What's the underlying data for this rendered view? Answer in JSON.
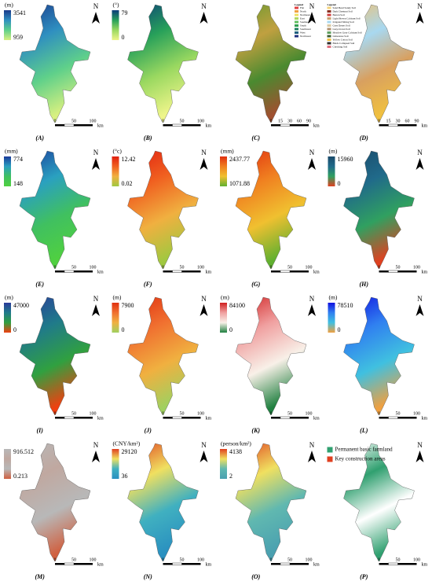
{
  "north": "N",
  "scale_bar": [
    "0",
    "50",
    "100",
    "km"
  ],
  "panels": [
    {
      "label": "(A)",
      "unit": "(m)",
      "max": "3541",
      "min": "959",
      "colors": [
        "#1a3a8a",
        "#2f8fc0",
        "#5fd08a",
        "#d8f080"
      ]
    },
    {
      "label": "(B)",
      "unit": "(°)",
      "max": "79",
      "min": "0",
      "colors": [
        "#0b3d7a",
        "#27a05a",
        "#9ad860",
        "#eef58a"
      ]
    },
    {
      "label": "(C)",
      "legend_title": "Legend",
      "scale_bar": [
        "0",
        "15",
        "30",
        "60",
        "90",
        "km"
      ],
      "items": [
        {
          "name": "Flat",
          "color": "#e04040"
        },
        {
          "name": "North",
          "color": "#f0a040"
        },
        {
          "name": "Northeast",
          "color": "#f0e060"
        },
        {
          "name": "East",
          "color": "#b0d860"
        },
        {
          "name": "Southeast",
          "color": "#60c060"
        },
        {
          "name": "South",
          "color": "#30a050"
        },
        {
          "name": "Southwest",
          "color": "#208060"
        },
        {
          "name": "West",
          "color": "#206080"
        },
        {
          "name": "Northwest",
          "color": "#203080"
        }
      ],
      "colors": [
        "#6a9a30",
        "#c0a040",
        "#4a8a30",
        "#a05030"
      ]
    },
    {
      "label": "(D)",
      "legend_title": "Legend",
      "scale_bar": [
        "0",
        "15",
        "30",
        "60",
        "90",
        "km"
      ],
      "items": [
        {
          "name": "Sand Bead Sandy Soil",
          "color": "#f4d27a"
        },
        {
          "name": "Dark Chestnut Soil",
          "color": "#8a3020"
        },
        {
          "name": "Barren Soil",
          "color": "#d04040"
        },
        {
          "name": "Light Brown Calcium Soil",
          "color": "#c8a070"
        },
        {
          "name": "Irrigated Silting Soil",
          "color": "#a8d8f0"
        },
        {
          "name": "Grey Desert Soil",
          "color": "#d8c8a0"
        },
        {
          "name": "Grey-brown Soil",
          "color": "#b09070"
        },
        {
          "name": "Meadow Grey Calcium Soil",
          "color": "#60a060"
        },
        {
          "name": "Limestone Soil",
          "color": "#406030"
        },
        {
          "name": "Yellow Cotton Soil",
          "color": "#f0c040"
        },
        {
          "name": "Black Collapsed Soil",
          "color": "#303030"
        },
        {
          "name": "Checking Soil",
          "color": "#e07080"
        }
      ],
      "colors": [
        "#f0c070",
        "#a8d8f0",
        "#d8a060",
        "#f0c040"
      ]
    },
    {
      "label": "(E)",
      "unit": "(mm)",
      "max": "774",
      "min": "148",
      "colors": [
        "#1a3a9a",
        "#2aa0c0",
        "#40c060",
        "#50d040"
      ]
    },
    {
      "label": "(F)",
      "unit": "(°c)",
      "max": "12.42",
      "min": "0.02",
      "colors": [
        "#e02010",
        "#f06020",
        "#f0b040",
        "#a0c840"
      ]
    },
    {
      "label": "(G)",
      "unit": "(mm)",
      "max": "2437.77",
      "min": "1071.88",
      "colors": [
        "#e03010",
        "#f08020",
        "#f0c030",
        "#60b030"
      ]
    },
    {
      "label": "(H)",
      "unit": "(m)",
      "max": "15960",
      "min": "0",
      "colors": [
        "#1a4a6a",
        "#206a8a",
        "#30a060",
        "#e04020"
      ]
    },
    {
      "label": "(I)",
      "unit": "(m)",
      "max": "47000",
      "min": "0",
      "colors": [
        "#2a3a9a",
        "#207a8a",
        "#30a040",
        "#f04010"
      ]
    },
    {
      "label": "(J)",
      "unit": "(m)",
      "max": "7900",
      "min": "0",
      "colors": [
        "#e03010",
        "#f07030",
        "#f0b040",
        "#a0d060"
      ]
    },
    {
      "label": "(K)",
      "unit": "(m)",
      "max": "84100",
      "min": "0",
      "colors": [
        "#d02020",
        "#f0a0a0",
        "#f8f0e8",
        "#208040"
      ]
    },
    {
      "label": "(L)",
      "unit": "(m)",
      "max": "78510",
      "min": "0",
      "colors": [
        "#1010e0",
        "#3080f0",
        "#40c0e0",
        "#f0a040"
      ]
    },
    {
      "label": "(M)",
      "max": "916.512",
      "min": "0.213",
      "colors": [
        "#b8b8b8",
        "#c0a8a0",
        "#b8b8b8",
        "#d06040"
      ]
    },
    {
      "label": "(N)",
      "unit": "(CNY/km²)",
      "max": "29120",
      "min": "36",
      "colors": [
        "#e04020",
        "#f0e060",
        "#40b0c0",
        "#2a90c0"
      ]
    },
    {
      "label": "(O)",
      "unit": "(person/km²)",
      "max": "4138",
      "min": "2",
      "colors": [
        "#e04020",
        "#f0e060",
        "#60b8b0",
        "#4aa0b0"
      ]
    },
    {
      "label": "(P)",
      "items": [
        {
          "name": "Permanent basic farmland",
          "color": "#30a070"
        },
        {
          "name": "Key construction areas",
          "color": "#e04020"
        }
      ],
      "colors": [
        "#ffffff",
        "#30a070",
        "#ffffff",
        "#30a070"
      ]
    }
  ]
}
